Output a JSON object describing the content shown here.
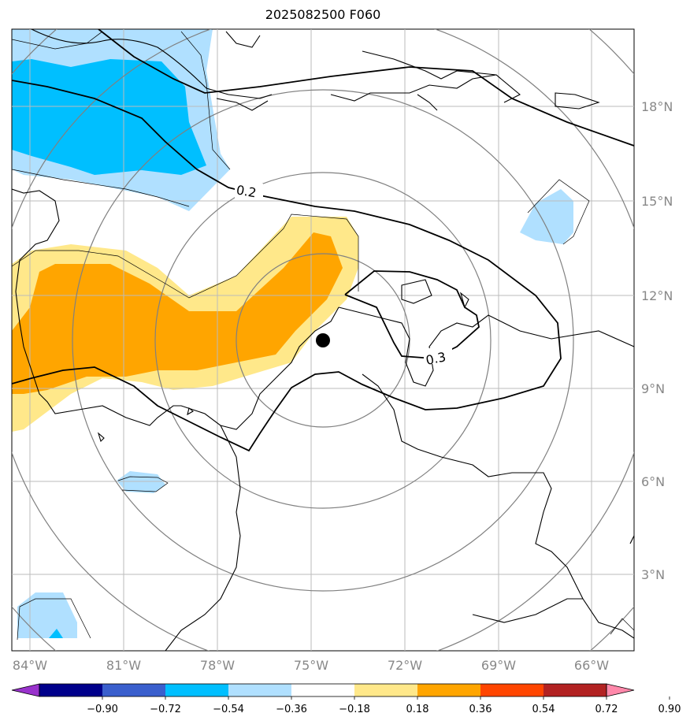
{
  "title": "2025082500 F060",
  "map": {
    "lon_range": [
      -85,
      -65
    ],
    "lat_range": [
      0,
      20
    ],
    "lon_ticks": [
      "84°W",
      "81°W",
      "78°W",
      "75°W",
      "72°W",
      "69°W",
      "66°W"
    ],
    "lat_ticks": [
      "18°N",
      "15°N",
      "12°N",
      "9°N",
      "6°N",
      "3°N"
    ],
    "contour_labels": [
      "0.2",
      "0.3"
    ],
    "colors": {
      "deep_blue": "#00bfff",
      "light_blue": "#b0e0ff",
      "orange": "#ffa500",
      "light_yellow": "#ffe88a",
      "range_rings": "#808080",
      "gridlines": "#bbbbbb",
      "coast": "#000000",
      "center_marker": "#000000"
    }
  },
  "colorbar": {
    "labels": [
      "−0.90",
      "−0.72",
      "−0.54",
      "−0.36",
      "−0.18",
      "0.18",
      "0.36",
      "0.54",
      "0.72",
      "0.90"
    ],
    "colors": [
      "#9932cc",
      "#00008b",
      "#3a5fcd",
      "#00bfff",
      "#b0e0ff",
      "#ffffff",
      "#ffe88a",
      "#ffa500",
      "#ff4500",
      "#b22222",
      "#ff88aa"
    ]
  }
}
